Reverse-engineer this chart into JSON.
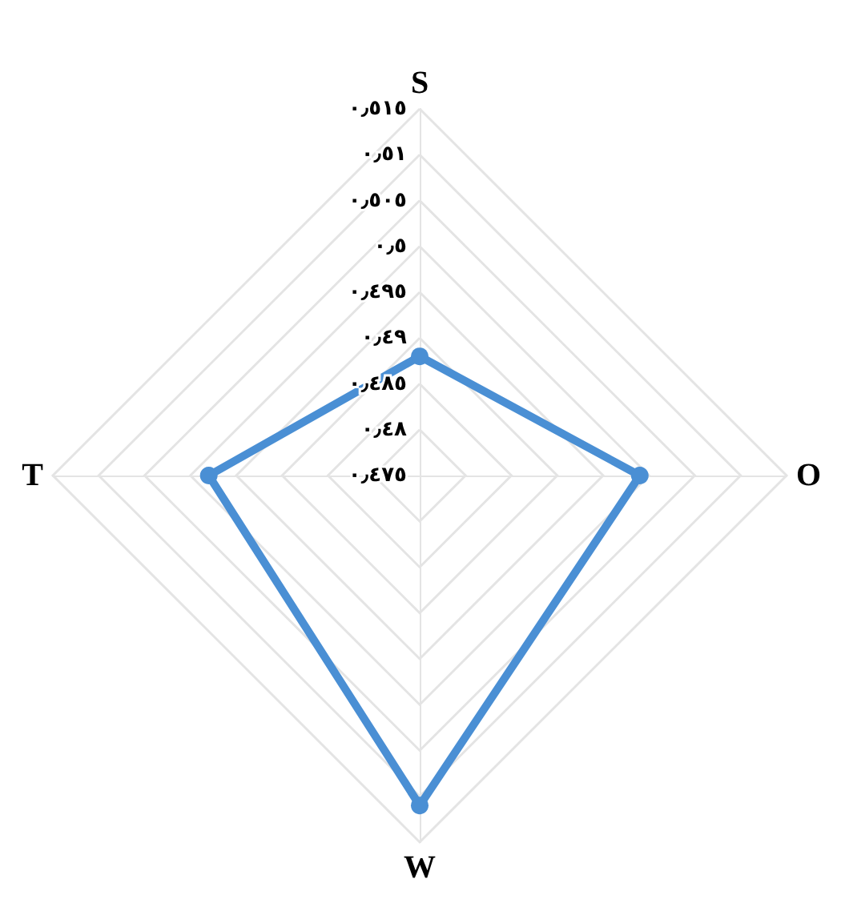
{
  "chart_data": {
    "type": "radar",
    "categories": [
      "S",
      "O",
      "W",
      "T"
    ],
    "series": [
      {
        "color": "#4a8fd4",
        "values": [
          0.488,
          0.499,
          0.511,
          0.498
        ]
      }
    ],
    "ylim": [
      0.475,
      0.515
    ],
    "yticks": [
      {
        "value": 0.475,
        "label": "٠٫٤٧٥"
      },
      {
        "value": 0.48,
        "label": "٠٫٤٨"
      },
      {
        "value": 0.485,
        "label": "٠٫٤٨٥"
      },
      {
        "value": 0.49,
        "label": "٠٫٤٩"
      },
      {
        "value": 0.495,
        "label": "٠٫٤٩٥"
      },
      {
        "value": 0.5,
        "label": "٠٫٥"
      },
      {
        "value": 0.505,
        "label": "٠٫٥٠٥"
      },
      {
        "value": 0.51,
        "label": "٠٫٥١"
      },
      {
        "value": 0.515,
        "label": "٠٫٥١٥"
      }
    ],
    "grid": true,
    "marker": "circle",
    "line_style": "solid"
  }
}
